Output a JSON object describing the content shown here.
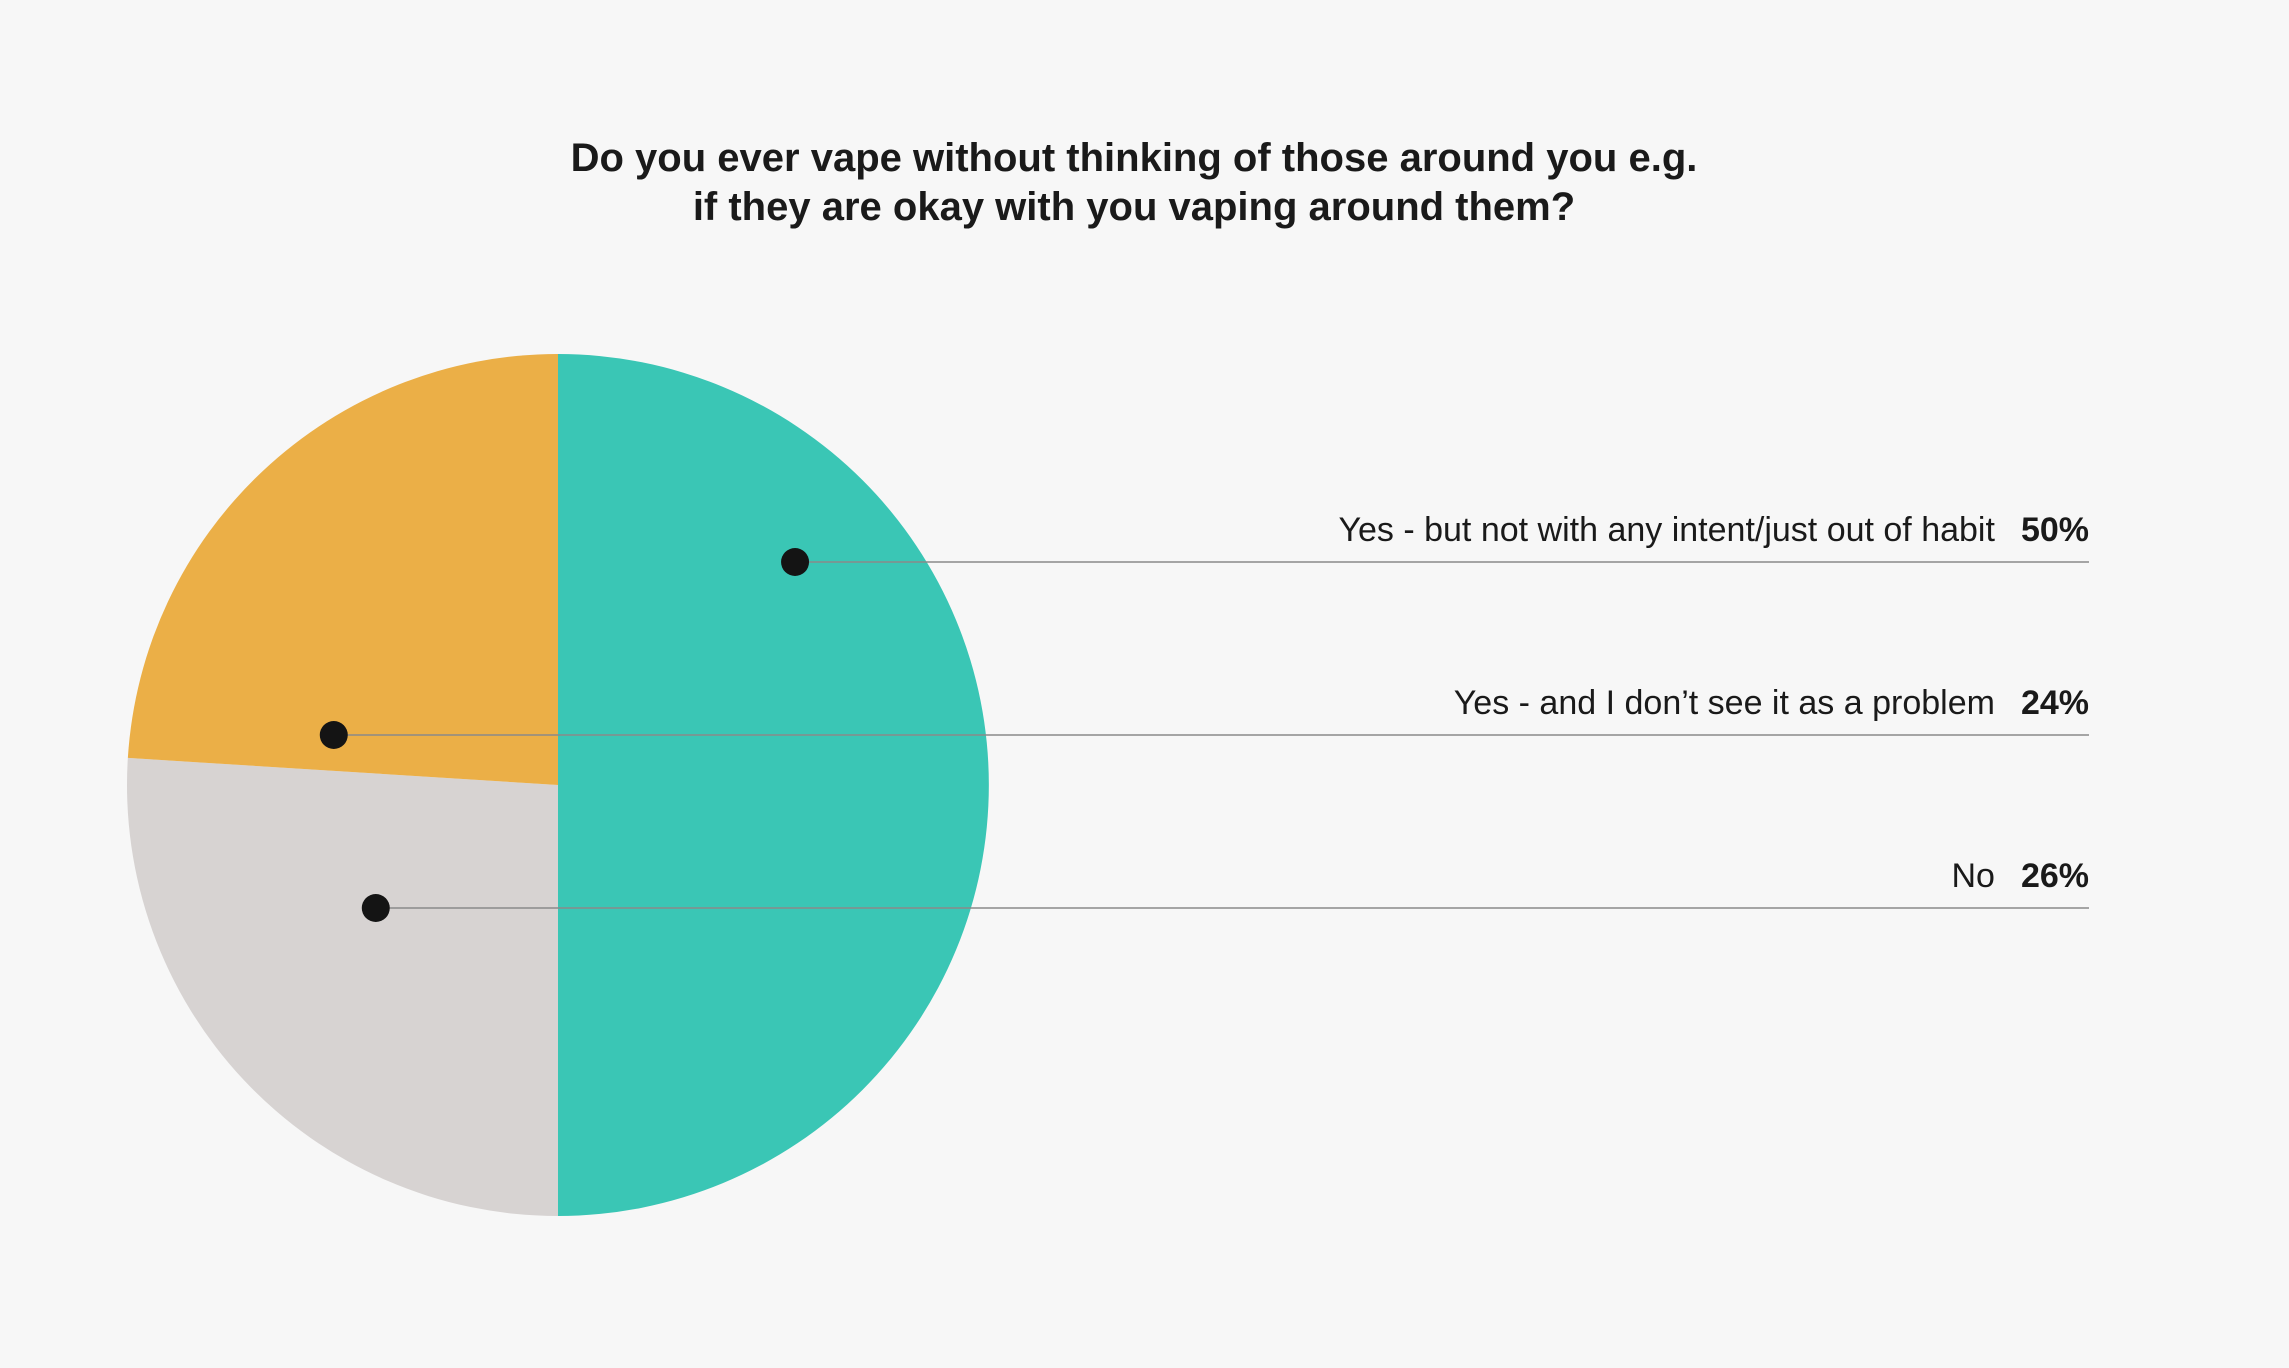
{
  "chart_data": {
    "type": "pie",
    "title_lines": [
      "Do you ever vape without thinking of those around you e.g.",
      "if they are okay with you vaping around them?"
    ],
    "slices": [
      {
        "label": "Yes - but not with any intent/just out of habit",
        "value": 50,
        "value_label": "50%",
        "color": "#3ac6b5"
      },
      {
        "label": "No",
        "value": 26,
        "value_label": "26%",
        "color": "#d7d3d2"
      },
      {
        "label": "Yes - and I don’t see it as a problem",
        "value": 24,
        "value_label": "24%",
        "color": "#ebaf47"
      }
    ],
    "legend_order": [
      0,
      2,
      1
    ],
    "legend_placement": "right",
    "start_angle": "12 o'clock",
    "direction": "clockwise"
  }
}
